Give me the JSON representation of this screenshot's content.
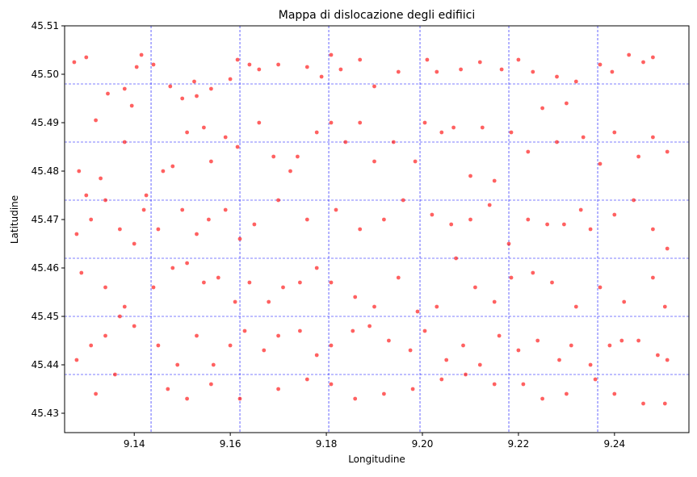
{
  "chart_data": {
    "type": "scatter",
    "title": "Mappa di dislocazione degli edifiici",
    "xlabel": "Longitudine",
    "ylabel": "Latitudine",
    "xlim": [
      9.1255,
      9.2555
    ],
    "ylim": [
      45.426,
      45.51
    ],
    "xticks": [
      9.14,
      9.16,
      9.18,
      9.2,
      9.22,
      9.24
    ],
    "xtick_labels": [
      "9.14",
      "9.16",
      "9.18",
      "9.20",
      "9.22",
      "9.24"
    ],
    "yticks": [
      45.43,
      45.44,
      45.45,
      45.46,
      45.47,
      45.48,
      45.49,
      45.5,
      45.51
    ],
    "ytick_labels": [
      "45.43",
      "45.44",
      "45.45",
      "45.46",
      "45.47",
      "45.48",
      "45.49",
      "45.50",
      "45.51"
    ],
    "grid": {
      "style": "dashed",
      "color": "#0000ff",
      "x": [
        9.1435,
        9.162,
        9.1805,
        9.1995,
        9.218,
        9.2365
      ],
      "y": [
        45.438,
        45.45,
        45.462,
        45.474,
        45.486,
        45.498
      ]
    },
    "colors": {
      "points": "#ff0000",
      "grid": "#0000ff",
      "axes": "#000000"
    },
    "sampled_points": [
      [
        9.1275,
        45.5025
      ],
      [
        9.13,
        45.5035
      ],
      [
        9.132,
        45.4905
      ],
      [
        9.1345,
        45.496
      ],
      [
        9.138,
        45.497
      ],
      [
        9.1395,
        45.4935
      ],
      [
        9.1405,
        45.5015
      ],
      [
        9.1415,
        45.504
      ],
      [
        9.144,
        45.502
      ],
      [
        9.1475,
        45.4975
      ],
      [
        9.15,
        45.495
      ],
      [
        9.1525,
        45.4985
      ],
      [
        9.153,
        45.4955
      ],
      [
        9.156,
        45.497
      ],
      [
        9.16,
        45.499
      ],
      [
        9.1615,
        45.503
      ],
      [
        9.164,
        45.502
      ],
      [
        9.166,
        45.501
      ],
      [
        9.17,
        45.502
      ],
      [
        9.176,
        45.5015
      ],
      [
        9.179,
        45.4995
      ],
      [
        9.181,
        45.504
      ],
      [
        9.183,
        45.501
      ],
      [
        9.187,
        45.503
      ],
      [
        9.19,
        45.4975
      ],
      [
        9.195,
        45.5005
      ],
      [
        9.201,
        45.503
      ],
      [
        9.203,
        45.5005
      ],
      [
        9.208,
        45.501
      ],
      [
        9.212,
        45.5025
      ],
      [
        9.2165,
        45.501
      ],
      [
        9.22,
        45.503
      ],
      [
        9.223,
        45.5005
      ],
      [
        9.228,
        45.4995
      ],
      [
        9.232,
        45.4985
      ],
      [
        9.237,
        45.502
      ],
      [
        9.2395,
        45.5005
      ],
      [
        9.243,
        45.504
      ],
      [
        9.246,
        45.5025
      ],
      [
        9.248,
        45.5035
      ],
      [
        9.1285,
        45.48
      ],
      [
        9.13,
        45.475
      ],
      [
        9.133,
        45.4785
      ],
      [
        9.138,
        45.486
      ],
      [
        9.1425,
        45.475
      ],
      [
        9.146,
        45.48
      ],
      [
        9.148,
        45.481
      ],
      [
        9.151,
        45.488
      ],
      [
        9.1545,
        45.489
      ],
      [
        9.156,
        45.482
      ],
      [
        9.159,
        45.487
      ],
      [
        9.1615,
        45.485
      ],
      [
        9.166,
        45.49
      ],
      [
        9.169,
        45.483
      ],
      [
        9.1725,
        45.48
      ],
      [
        9.174,
        45.483
      ],
      [
        9.178,
        45.488
      ],
      [
        9.181,
        45.49
      ],
      [
        9.184,
        45.486
      ],
      [
        9.187,
        45.49
      ],
      [
        9.19,
        45.482
      ],
      [
        9.194,
        45.486
      ],
      [
        9.1985,
        45.482
      ],
      [
        9.2005,
        45.49
      ],
      [
        9.204,
        45.488
      ],
      [
        9.2065,
        45.489
      ],
      [
        9.21,
        45.479
      ],
      [
        9.2125,
        45.489
      ],
      [
        9.215,
        45.478
      ],
      [
        9.2185,
        45.488
      ],
      [
        9.222,
        45.484
      ],
      [
        9.225,
        45.493
      ],
      [
        9.228,
        45.486
      ],
      [
        9.23,
        45.494
      ],
      [
        9.2335,
        45.487
      ],
      [
        9.237,
        45.4815
      ],
      [
        9.24,
        45.488
      ],
      [
        9.245,
        45.483
      ],
      [
        9.248,
        45.487
      ],
      [
        9.251,
        45.484
      ],
      [
        9.128,
        45.467
      ],
      [
        9.131,
        45.47
      ],
      [
        9.134,
        45.474
      ],
      [
        9.137,
        45.468
      ],
      [
        9.14,
        45.465
      ],
      [
        9.142,
        45.472
      ],
      [
        9.145,
        45.468
      ],
      [
        9.15,
        45.472
      ],
      [
        9.153,
        45.467
      ],
      [
        9.1555,
        45.47
      ],
      [
        9.159,
        45.472
      ],
      [
        9.162,
        45.466
      ],
      [
        9.165,
        45.469
      ],
      [
        9.17,
        45.474
      ],
      [
        9.176,
        45.47
      ],
      [
        9.182,
        45.472
      ],
      [
        9.187,
        45.468
      ],
      [
        9.192,
        45.47
      ],
      [
        9.196,
        45.474
      ],
      [
        9.202,
        45.471
      ],
      [
        9.206,
        45.469
      ],
      [
        9.21,
        45.47
      ],
      [
        9.214,
        45.473
      ],
      [
        9.218,
        45.465
      ],
      [
        9.222,
        45.47
      ],
      [
        9.226,
        45.469
      ],
      [
        9.2295,
        45.469
      ],
      [
        9.233,
        45.472
      ],
      [
        9.235,
        45.468
      ],
      [
        9.24,
        45.471
      ],
      [
        9.244,
        45.474
      ],
      [
        9.248,
        45.468
      ],
      [
        9.251,
        45.464
      ],
      [
        9.129,
        45.459
      ],
      [
        9.134,
        45.456
      ],
      [
        9.138,
        45.452
      ],
      [
        9.144,
        45.456
      ],
      [
        9.148,
        45.46
      ],
      [
        9.151,
        45.461
      ],
      [
        9.1545,
        45.457
      ],
      [
        9.1575,
        45.458
      ],
      [
        9.161,
        45.453
      ],
      [
        9.164,
        45.457
      ],
      [
        9.168,
        45.453
      ],
      [
        9.171,
        45.456
      ],
      [
        9.1745,
        45.457
      ],
      [
        9.178,
        45.46
      ],
      [
        9.181,
        45.457
      ],
      [
        9.186,
        45.454
      ],
      [
        9.19,
        45.452
      ],
      [
        9.195,
        45.458
      ],
      [
        9.199,
        45.451
      ],
      [
        9.203,
        45.452
      ],
      [
        9.207,
        45.462
      ],
      [
        9.211,
        45.456
      ],
      [
        9.215,
        45.453
      ],
      [
        9.2185,
        45.458
      ],
      [
        9.223,
        45.459
      ],
      [
        9.227,
        45.457
      ],
      [
        9.232,
        45.452
      ],
      [
        9.237,
        45.456
      ],
      [
        9.242,
        45.453
      ],
      [
        9.248,
        45.458
      ],
      [
        9.2505,
        45.452
      ],
      [
        9.128,
        45.441
      ],
      [
        9.131,
        45.444
      ],
      [
        9.134,
        45.446
      ],
      [
        9.137,
        45.45
      ],
      [
        9.14,
        45.448
      ],
      [
        9.145,
        45.444
      ],
      [
        9.149,
        45.44
      ],
      [
        9.153,
        45.446
      ],
      [
        9.1565,
        45.44
      ],
      [
        9.16,
        45.444
      ],
      [
        9.163,
        45.447
      ],
      [
        9.167,
        45.443
      ],
      [
        9.17,
        45.446
      ],
      [
        9.1745,
        45.447
      ],
      [
        9.178,
        45.442
      ],
      [
        9.181,
        45.444
      ],
      [
        9.1855,
        45.447
      ],
      [
        9.189,
        45.448
      ],
      [
        9.193,
        45.445
      ],
      [
        9.1975,
        45.443
      ],
      [
        9.2005,
        45.447
      ],
      [
        9.205,
        45.441
      ],
      [
        9.2085,
        45.444
      ],
      [
        9.212,
        45.44
      ],
      [
        9.216,
        45.446
      ],
      [
        9.22,
        45.443
      ],
      [
        9.224,
        45.445
      ],
      [
        9.2285,
        45.441
      ],
      [
        9.231,
        45.444
      ],
      [
        9.235,
        45.44
      ],
      [
        9.239,
        45.444
      ],
      [
        9.2415,
        45.445
      ],
      [
        9.245,
        45.445
      ],
      [
        9.249,
        45.442
      ],
      [
        9.251,
        45.441
      ],
      [
        9.132,
        45.434
      ],
      [
        9.136,
        45.438
      ],
      [
        9.147,
        45.435
      ],
      [
        9.151,
        45.433
      ],
      [
        9.156,
        45.436
      ],
      [
        9.162,
        45.433
      ],
      [
        9.17,
        45.435
      ],
      [
        9.176,
        45.437
      ],
      [
        9.181,
        45.436
      ],
      [
        9.186,
        45.433
      ],
      [
        9.192,
        45.434
      ],
      [
        9.198,
        45.435
      ],
      [
        9.204,
        45.437
      ],
      [
        9.209,
        45.438
      ],
      [
        9.215,
        45.436
      ],
      [
        9.221,
        45.436
      ],
      [
        9.225,
        45.433
      ],
      [
        9.23,
        45.434
      ],
      [
        9.236,
        45.437
      ],
      [
        9.24,
        45.434
      ],
      [
        9.246,
        45.432
      ],
      [
        9.2505,
        45.432
      ]
    ]
  }
}
